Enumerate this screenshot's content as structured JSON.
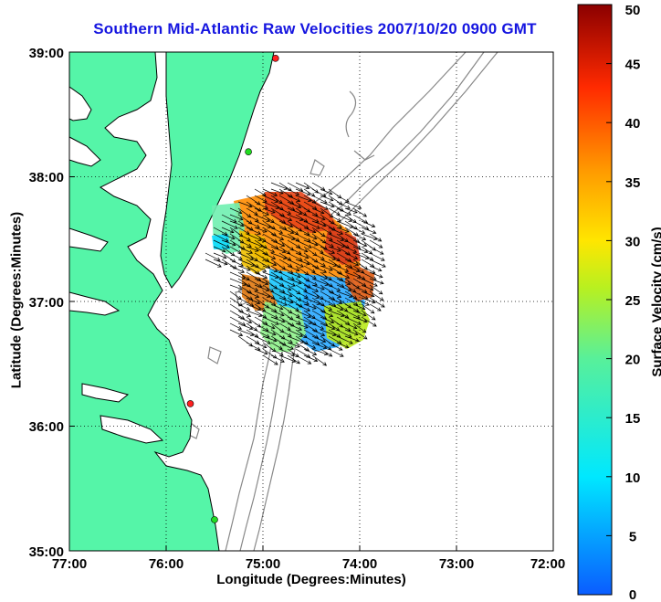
{
  "title": "Southern Mid-Atlantic Raw Velocities 2007/10/20 0900 GMT",
  "xlabel": "Longitude (Degrees:Minutes)",
  "ylabel": "Latitude (Degrees:Minutes)",
  "xticks": [
    "77:00",
    "76:00",
    "75:00",
    "74:00",
    "73:00",
    "72:00"
  ],
  "yticks": [
    "39:00",
    "38:00",
    "37:00",
    "36:00",
    "35:00"
  ],
  "colorbar": {
    "label": "Surface Velocity (cm/s)",
    "ticks": [
      "50",
      "45",
      "40",
      "35",
      "30",
      "25",
      "20",
      "15",
      "10",
      "5",
      "0"
    ],
    "range": [
      0,
      50
    ]
  },
  "colors": {
    "land": "#55f5a8",
    "coastline": "#000000",
    "bathymetry": "#888888",
    "title": "#1515e0",
    "station": "#ff2020",
    "station_alt": "#22dd22"
  },
  "map_extent": {
    "lon": [
      -77,
      -72
    ],
    "lat": [
      35,
      39
    ]
  },
  "stations": [
    {
      "lon": -74.87,
      "lat": 38.95,
      "color": "red"
    },
    {
      "lon": -75.15,
      "lat": 38.2,
      "color": "green"
    },
    {
      "lon": -75.75,
      "lat": 36.18,
      "color": "red"
    },
    {
      "lon": -75.5,
      "lat": 35.25,
      "color": "green"
    }
  ]
}
